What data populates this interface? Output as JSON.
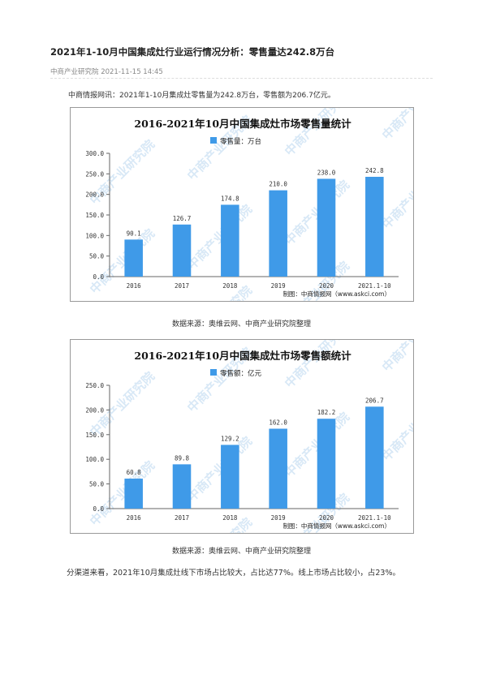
{
  "article": {
    "title": "2021年1-10月中国集成灶行业运行情况分析：零售量达242.8万台",
    "meta": "中商产业研究院 2021-11-15 14:45",
    "intro": "中商情报网讯：2021年1-10月集成灶零售量为242.8万台，零售额为206.7亿元。",
    "caption1": "数据来源：奥维云网、中商产业研究院整理",
    "caption2": "数据来源：奥维云网、中商产业研究院整理",
    "paragraph": "分渠道来看，2021年10月集成灶线下市场占比较大，占比达77%。线上市场占比较小，占23%。"
  },
  "colors": {
    "bar": "#3f9ae8",
    "watermark": "#b9d7f0"
  },
  "watermark_text": "中商产业研究院",
  "chart_data": [
    {
      "type": "bar",
      "title": "2016-2021年10月中国集成灶市场零售量统计",
      "legend": "零售量：万台",
      "legend_position": "top-center",
      "categories": [
        "2016",
        "2017",
        "2018",
        "2019",
        "2020",
        "2021.1-10"
      ],
      "values": [
        90.1,
        126.7,
        174.8,
        210.0,
        238.0,
        242.8
      ],
      "value_labels": [
        "90.1",
        "126.7",
        "174.8",
        "210.0",
        "238.0",
        "242.8"
      ],
      "yticks": [
        "0.0",
        "50.0",
        "100.0",
        "150.0",
        "200.0",
        "250.0",
        "300.0"
      ],
      "ylim": [
        0,
        300
      ],
      "grid": false,
      "footer": "制图：中商情报网（www.askci.com）"
    },
    {
      "type": "bar",
      "title": "2016-2021年10月中国集成灶市场零售额统计",
      "legend": "零售额：亿元",
      "legend_position": "top-center",
      "categories": [
        "2016",
        "2017",
        "2018",
        "2019",
        "2020",
        "2021.1-10"
      ],
      "values": [
        60.8,
        89.8,
        129.2,
        162.0,
        182.2,
        206.7
      ],
      "value_labels": [
        "60.8",
        "89.8",
        "129.2",
        "162.0",
        "182.2",
        "206.7"
      ],
      "yticks": [
        "0.0",
        "50.0",
        "100.0",
        "150.0",
        "200.0",
        "250.0"
      ],
      "ylim": [
        0,
        250
      ],
      "grid": false,
      "footer": "制图：中商情报网（www.askci.com）"
    }
  ]
}
